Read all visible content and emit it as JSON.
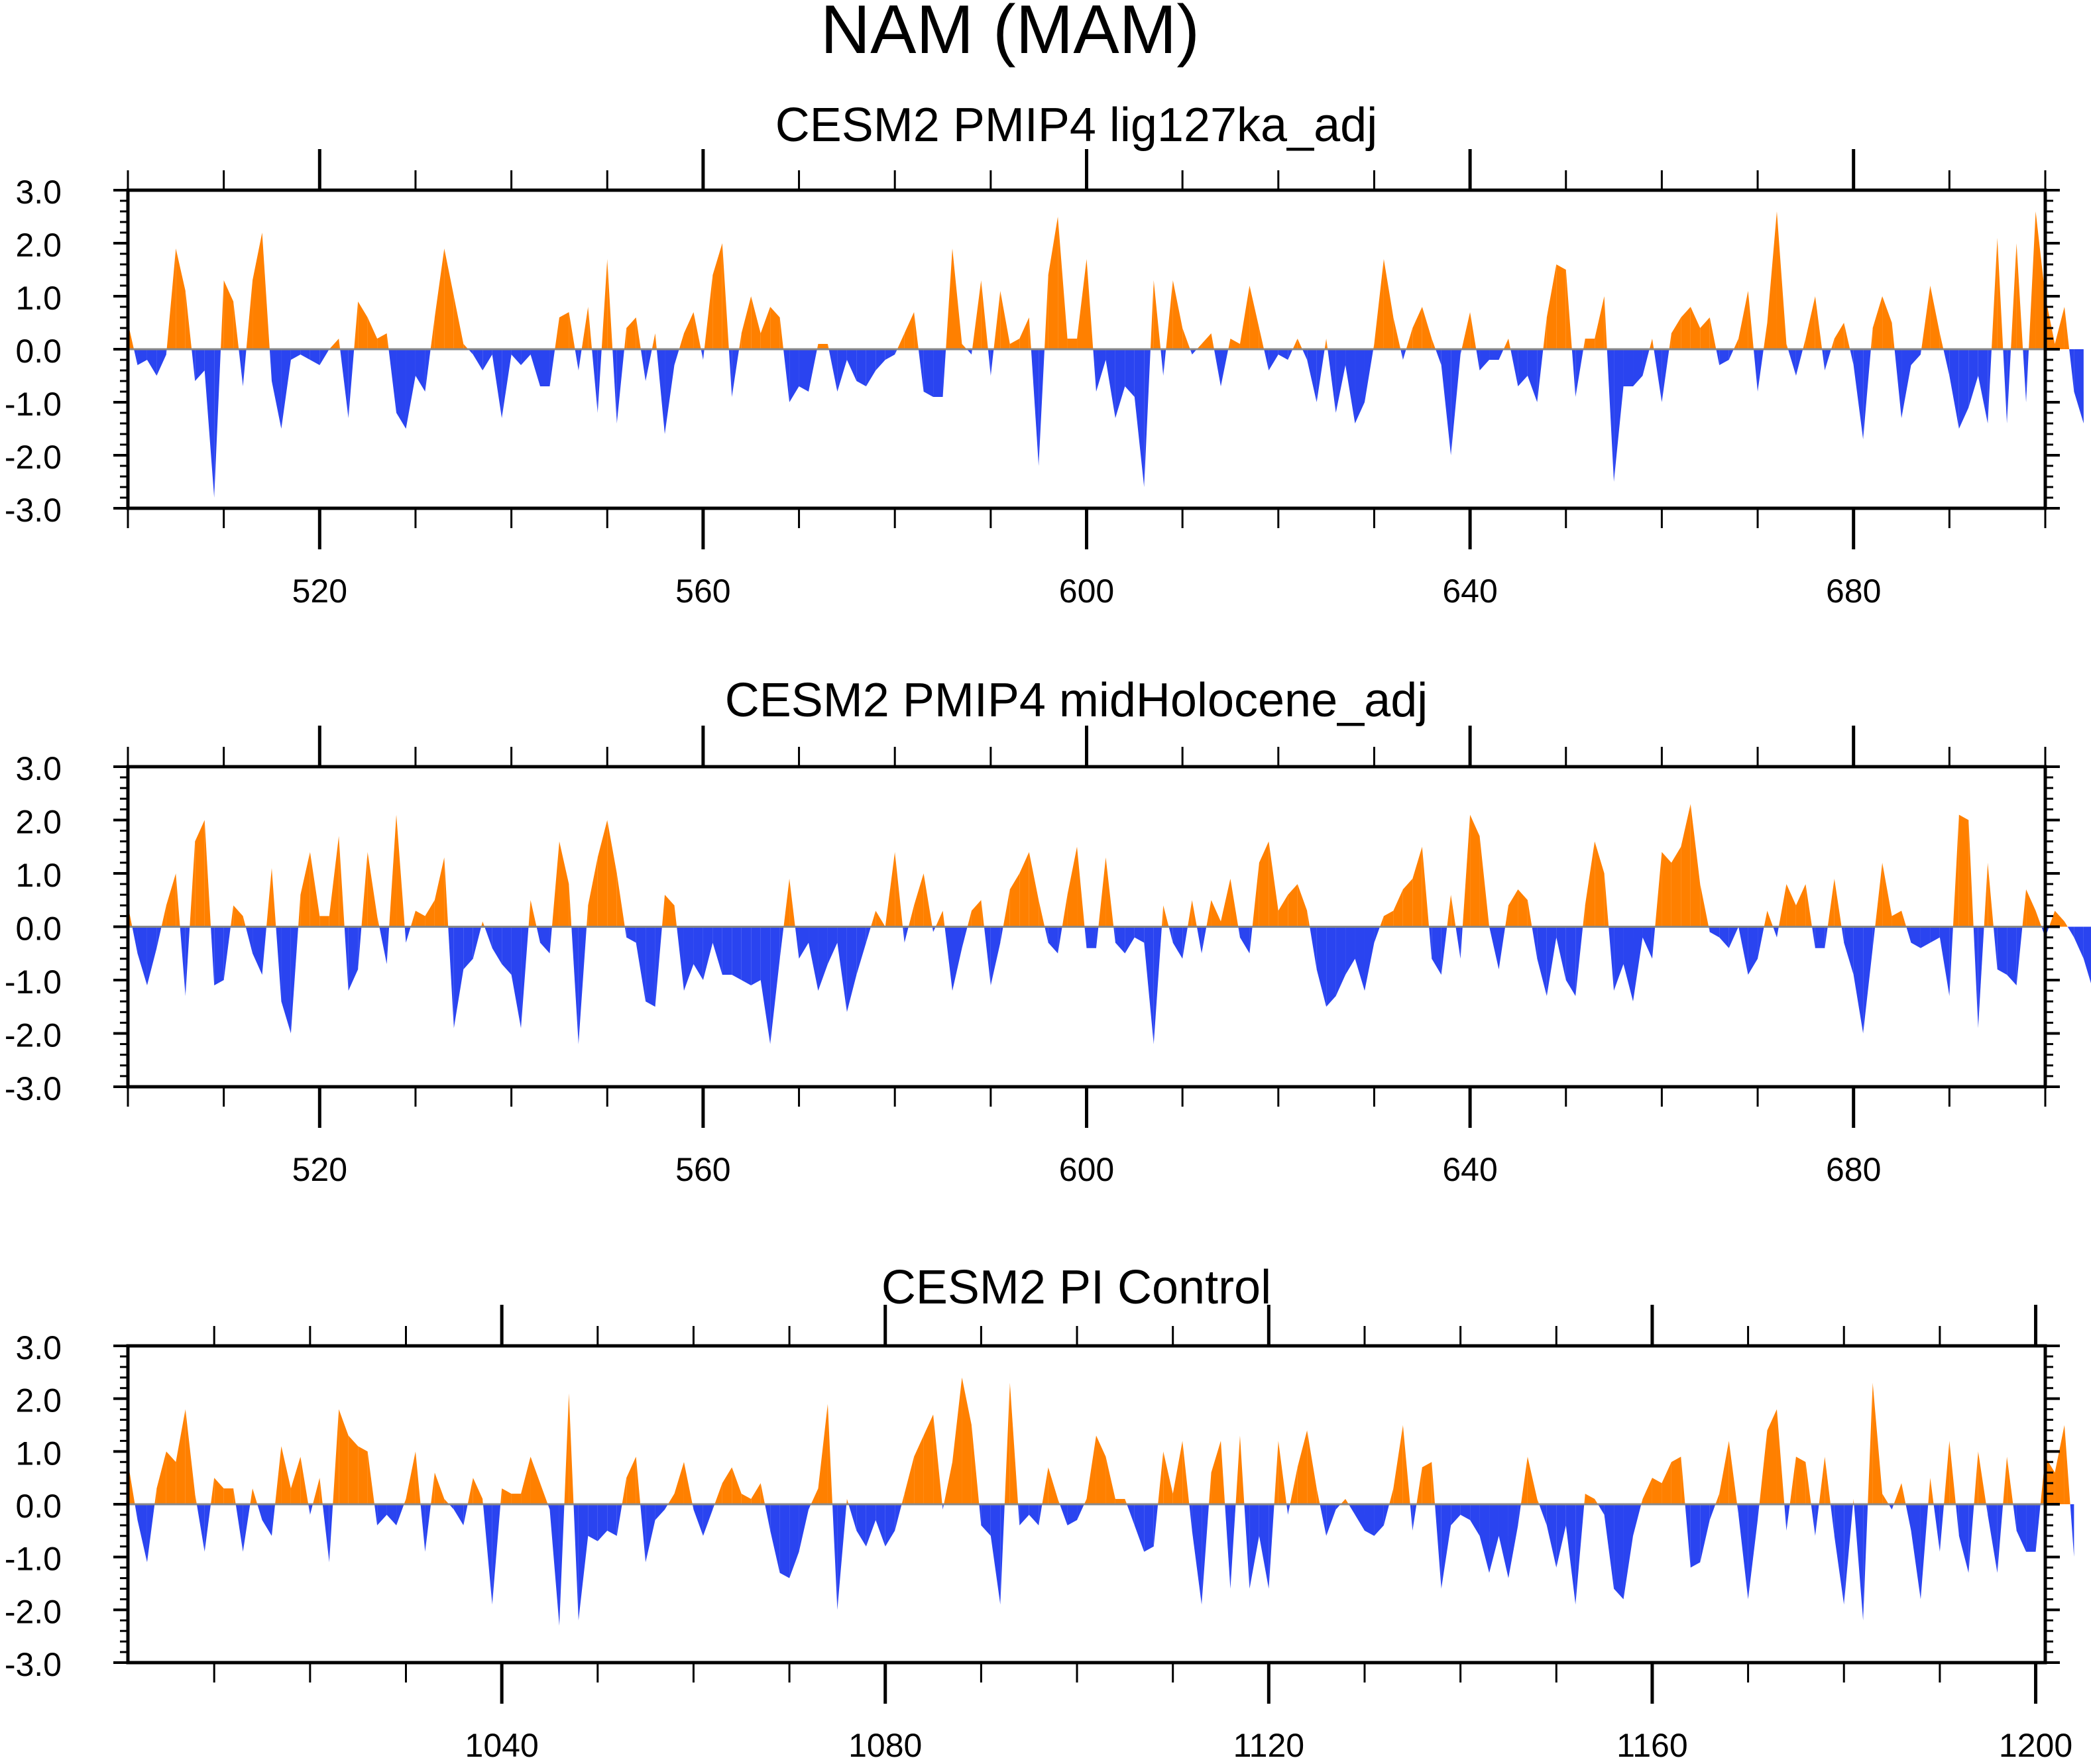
{
  "figure_title": "NAM (MAM)",
  "colors": {
    "positive": "#ff8000",
    "negative": "#2a44f0"
  },
  "chart_data": [
    {
      "type": "area",
      "title": "CESM2 PMIP4 lig127ka_adj",
      "xlim": [
        500,
        700
      ],
      "ylim": [
        -3,
        3
      ],
      "x_ticks": [
        520,
        560,
        600,
        640,
        680
      ],
      "x_tick_labels": [
        "520",
        "560",
        "600",
        "640",
        "680"
      ],
      "y_ticks": [
        3.0,
        2.0,
        1.0,
        0.0,
        -1.0,
        -2.0,
        -3.0
      ],
      "y_tick_labels": [
        "3.0",
        "2.0",
        "1.0",
        "0.0",
        "-1.0",
        "-2.0",
        "-3.0"
      ],
      "x_start": 500,
      "values": [
        0.5,
        -0.3,
        -0.2,
        -0.5,
        -0.1,
        1.9,
        1.1,
        -0.6,
        -0.4,
        -2.8,
        1.3,
        0.9,
        -0.7,
        1.3,
        2.2,
        -0.6,
        -1.5,
        -0.2,
        -0.1,
        -0.2,
        -0.3,
        0.0,
        0.2,
        -1.3,
        0.9,
        0.6,
        0.2,
        0.3,
        -1.2,
        -1.5,
        -0.5,
        -0.8,
        0.6,
        1.9,
        1.0,
        0.1,
        -0.1,
        -0.4,
        -0.1,
        -1.3,
        -0.1,
        -0.3,
        -0.1,
        -0.7,
        -0.7,
        0.6,
        0.7,
        -0.4,
        0.8,
        -1.2,
        1.7,
        -1.4,
        0.4,
        0.6,
        -0.6,
        0.3,
        -1.6,
        -0.3,
        0.3,
        0.7,
        -0.2,
        1.4,
        2.0,
        -0.9,
        0.3,
        1.0,
        0.3,
        0.8,
        0.6,
        -1.0,
        -0.7,
        -0.8,
        0.1,
        0.1,
        -0.8,
        -0.2,
        -0.6,
        -0.7,
        -0.4,
        -0.2,
        -0.1,
        0.3,
        0.7,
        -0.8,
        -0.9,
        -0.9,
        1.9,
        0.1,
        -0.1,
        1.3,
        -0.5,
        1.1,
        0.1,
        0.2,
        0.6,
        -2.2,
        1.4,
        2.5,
        0.2,
        0.2,
        1.7,
        -0.8,
        -0.2,
        -1.3,
        -0.7,
        -0.9,
        -2.6,
        1.3,
        -0.5,
        1.3,
        0.4,
        -0.1,
        0.1,
        0.3,
        -0.7,
        0.2,
        0.1,
        1.2,
        0.4,
        -0.4,
        -0.1,
        -0.2,
        0.2,
        -0.2,
        -1.0,
        0.2,
        -1.2,
        -0.3,
        -1.4,
        -1.0,
        0.1,
        1.7,
        0.6,
        -0.2,
        0.4,
        0.8,
        0.2,
        -0.3,
        -2.0,
        -0.1,
        0.7,
        -0.4,
        -0.2,
        -0.2,
        0.2,
        -0.7,
        -0.5,
        -1.0,
        0.6,
        1.6,
        1.5,
        -0.9,
        0.2,
        0.2,
        1.0,
        -2.5,
        -0.7,
        -0.7,
        -0.5,
        0.2,
        -1.0,
        0.3,
        0.6,
        0.8,
        0.4,
        0.6,
        -0.3,
        -0.2,
        0.2,
        1.1,
        -0.8,
        0.5,
        2.6,
        0.1,
        -0.5,
        0.2,
        1.0,
        -0.4,
        0.2,
        0.5,
        -0.3,
        -1.7,
        0.4,
        1.0,
        0.5,
        -1.3,
        -0.3,
        -0.1,
        1.2,
        0.3,
        -0.5,
        -1.5,
        -1.1,
        -0.5,
        -1.4,
        2.1,
        -1.4,
        2.0,
        -1.0,
        2.6,
        1.0,
        0.1,
        0.8,
        -0.8,
        -1.4
      ]
    },
    {
      "type": "area",
      "title": "CESM2 PMIP4 midHolocene_adj",
      "xlim": [
        500,
        700
      ],
      "ylim": [
        -3,
        3
      ],
      "x_ticks": [
        520,
        560,
        600,
        640,
        680
      ],
      "x_tick_labels": [
        "520",
        "560",
        "600",
        "640",
        "680"
      ],
      "y_ticks": [
        3.0,
        2.0,
        1.0,
        0.0,
        -1.0,
        -2.0,
        -3.0
      ],
      "y_tick_labels": [
        "3.0",
        "2.0",
        "1.0",
        "0.0",
        "-1.0",
        "-2.0",
        "-3.0"
      ],
      "x_start": 500,
      "values": [
        0.4,
        -0.5,
        -1.1,
        -0.4,
        0.4,
        1.0,
        -1.3,
        1.6,
        2.0,
        -1.1,
        -1.0,
        0.4,
        0.2,
        -0.5,
        -0.9,
        1.1,
        -1.4,
        -2.0,
        0.6,
        1.4,
        0.2,
        0.2,
        1.7,
        -1.2,
        -0.8,
        1.4,
        0.2,
        -0.7,
        2.1,
        -0.3,
        0.3,
        0.2,
        0.5,
        1.3,
        -1.9,
        -0.8,
        -0.6,
        0.1,
        -0.4,
        -0.7,
        -0.9,
        -1.9,
        0.5,
        -0.3,
        -0.5,
        1.6,
        0.8,
        -2.2,
        0.4,
        1.3,
        2.0,
        1.0,
        -0.2,
        -0.3,
        -1.4,
        -1.5,
        0.6,
        0.4,
        -1.2,
        -0.7,
        -1.0,
        -0.3,
        -0.9,
        -0.9,
        -1.0,
        -1.1,
        -1.0,
        -2.2,
        -0.6,
        0.9,
        -0.6,
        -0.3,
        -1.2,
        -0.7,
        -0.3,
        -1.6,
        -0.9,
        -0.3,
        0.3,
        0.0,
        1.4,
        -0.3,
        0.4,
        1.0,
        -0.1,
        0.3,
        -1.2,
        -0.4,
        0.3,
        0.5,
        -1.1,
        -0.3,
        0.7,
        1.0,
        1.4,
        0.5,
        -0.3,
        -0.5,
        0.6,
        1.5,
        -0.4,
        -0.4,
        1.3,
        -0.3,
        -0.5,
        -0.2,
        -0.3,
        -2.2,
        0.4,
        -0.3,
        -0.6,
        0.5,
        -0.5,
        0.5,
        0.1,
        0.9,
        -0.2,
        -0.5,
        1.2,
        1.6,
        0.3,
        0.6,
        0.8,
        0.3,
        -0.8,
        -1.5,
        -1.3,
        -0.9,
        -0.6,
        -1.2,
        -0.3,
        0.2,
        0.3,
        0.7,
        0.9,
        1.5,
        -0.6,
        -0.9,
        0.6,
        -0.6,
        2.1,
        1.7,
        0.0,
        -0.8,
        0.4,
        0.7,
        0.5,
        -0.6,
        -1.3,
        -0.2,
        -1.0,
        -1.3,
        0.4,
        1.6,
        1.0,
        -1.2,
        -0.7,
        -1.4,
        -0.2,
        -0.6,
        1.4,
        1.2,
        1.5,
        2.3,
        0.8,
        -0.1,
        -0.2,
        -0.4,
        0.0,
        -0.9,
        -0.6,
        0.3,
        -0.2,
        0.8,
        0.4,
        0.8,
        -0.4,
        -0.4,
        0.9,
        -0.3,
        -0.9,
        -2.0,
        -0.4,
        1.2,
        0.2,
        0.3,
        -0.3,
        -0.4,
        -0.3,
        -0.2,
        -1.3,
        2.1,
        2.0,
        -1.9,
        1.2,
        -0.8,
        -0.9,
        -1.1,
        0.7,
        0.3,
        -0.2,
        0.3,
        0.1,
        -0.2,
        -0.6,
        -1.2
      ]
    },
    {
      "type": "area",
      "title": "CESM2 PI Control",
      "xlim": [
        1001,
        1201
      ],
      "ylim": [
        -3,
        3
      ],
      "x_ticks": [
        1040,
        1080,
        1120,
        1160,
        1200
      ],
      "x_tick_labels": [
        "1040",
        "1080",
        "1120",
        "1160",
        "1200"
      ],
      "y_ticks": [
        3.0,
        2.0,
        1.0,
        0.0,
        -1.0,
        -2.0,
        -3.0
      ],
      "y_tick_labels": [
        "3.0",
        "2.0",
        "1.0",
        "0.0",
        "-1.0",
        "-2.0",
        "-3.0"
      ],
      "x_start": 1001,
      "values": [
        0.8,
        -0.3,
        -1.1,
        0.3,
        1.0,
        0.8,
        1.8,
        0.2,
        -0.9,
        0.5,
        0.3,
        0.3,
        -0.9,
        0.3,
        -0.3,
        -0.6,
        1.1,
        0.3,
        0.9,
        -0.2,
        0.5,
        -1.1,
        1.8,
        1.3,
        1.1,
        1.0,
        -0.4,
        -0.2,
        -0.4,
        0.1,
        1.0,
        -0.9,
        0.6,
        0.1,
        -0.1,
        -0.4,
        0.5,
        0.1,
        -1.9,
        0.3,
        0.2,
        0.2,
        0.9,
        0.4,
        -0.1,
        -2.3,
        2.1,
        -2.2,
        -0.6,
        -0.7,
        -0.5,
        -0.6,
        0.5,
        0.9,
        -1.1,
        -0.3,
        -0.1,
        0.2,
        0.8,
        -0.1,
        -0.6,
        -0.1,
        0.4,
        0.7,
        0.2,
        0.1,
        0.4,
        -0.5,
        -1.3,
        -1.4,
        -0.9,
        -0.1,
        0.3,
        1.9,
        -2.0,
        0.1,
        -0.5,
        -0.8,
        -0.3,
        -0.8,
        -0.5,
        0.2,
        0.9,
        1.3,
        1.7,
        -0.1,
        0.8,
        2.4,
        1.5,
        -0.4,
        -0.6,
        -1.9,
        2.3,
        -0.4,
        -0.2,
        -0.4,
        0.7,
        0.1,
        -0.4,
        -0.3,
        0.1,
        1.3,
        0.9,
        0.1,
        0.1,
        -0.4,
        -0.9,
        -0.8,
        1.0,
        0.2,
        1.2,
        -0.5,
        -1.9,
        0.6,
        1.2,
        -1.6,
        1.3,
        -1.6,
        -0.6,
        -1.6,
        1.2,
        -0.2,
        0.7,
        1.4,
        0.3,
        -0.6,
        -0.1,
        0.1,
        -0.2,
        -0.5,
        -0.6,
        -0.4,
        0.3,
        1.5,
        -0.5,
        0.7,
        0.8,
        -1.6,
        -0.4,
        -0.2,
        -0.3,
        -0.6,
        -1.3,
        -0.6,
        -1.4,
        -0.4,
        0.9,
        0.1,
        -0.4,
        -1.2,
        -0.4,
        -1.9,
        0.2,
        0.1,
        -0.2,
        -1.6,
        -1.8,
        -0.6,
        0.1,
        0.5,
        0.4,
        0.8,
        0.9,
        -1.2,
        -1.1,
        -0.3,
        0.2,
        1.2,
        -0.2,
        -1.8,
        -0.3,
        1.4,
        1.8,
        -0.5,
        0.9,
        0.8,
        -0.6,
        0.9,
        -0.6,
        -1.9,
        0.1,
        -2.2,
        2.3,
        0.2,
        -0.1,
        0.4,
        -0.5,
        -1.8,
        0.5,
        -0.9,
        1.2,
        -0.6,
        -1.3,
        1.0,
        -0.2,
        -1.3,
        0.9,
        -0.5,
        -0.9,
        -0.9,
        0.9,
        0.6,
        1.5,
        -1.0
      ]
    }
  ]
}
